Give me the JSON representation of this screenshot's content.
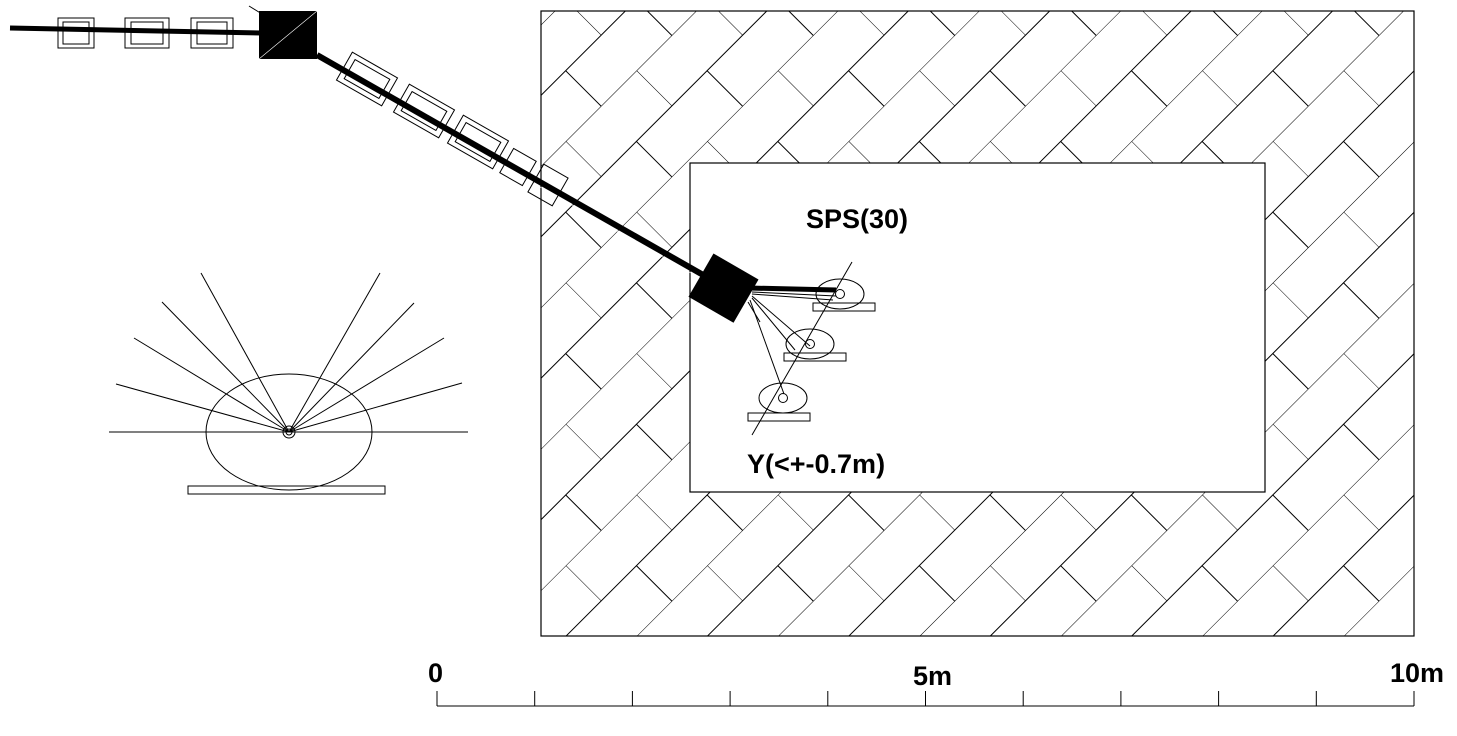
{
  "labels": {
    "sps": "SPS(30)",
    "y_range": "Y(<+-0.7m)"
  },
  "scale_bar": {
    "start_label": "0",
    "mid_label": "5m",
    "end_label": "10m",
    "divisions": 10
  },
  "colors": {
    "ink": "#000000",
    "background": "#ffffff"
  }
}
